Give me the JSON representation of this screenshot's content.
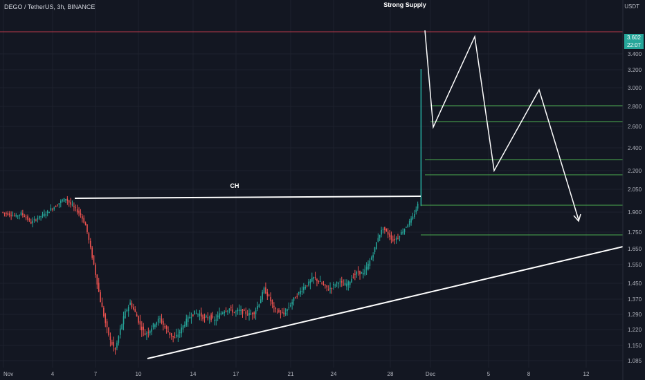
{
  "header": {
    "symbol_title": "DEGO / TetherUS, 3h, BINANCE",
    "currency": "USDT"
  },
  "last_price": {
    "value": "3.602",
    "countdown": "22:07"
  },
  "chart_data": {
    "type": "candlestick",
    "x_ticks": [
      "Nov",
      "4",
      "7",
      "10",
      "14",
      "17",
      "21",
      "24",
      "28",
      "Dec",
      "5",
      "8",
      "12"
    ],
    "y_ticks": [
      "3.400",
      "3.200",
      "3.000",
      "2.800",
      "2.600",
      "2.400",
      "2.200",
      "2.050",
      "1.900",
      "1.750",
      "1.650",
      "1.550",
      "1.450",
      "1.370",
      "1.290",
      "1.220",
      "1.150",
      "1.085"
    ],
    "annotations": [
      {
        "text": "Strong Supply"
      },
      {
        "text": "CH"
      }
    ],
    "price_path": [
      {
        "price": 1.9
      },
      {
        "price": 1.89
      },
      {
        "price": 1.88
      },
      {
        "price": 1.87
      },
      {
        "price": 1.89
      },
      {
        "price": 1.86
      },
      {
        "price": 1.82
      },
      {
        "price": 1.85
      },
      {
        "price": 1.87
      },
      {
        "price": 1.89
      },
      {
        "price": 1.92
      },
      {
        "price": 1.94
      },
      {
        "price": 1.97
      },
      {
        "price": 1.99
      },
      {
        "price": 1.95
      },
      {
        "price": 1.92
      },
      {
        "price": 1.88
      },
      {
        "price": 1.8
      },
      {
        "price": 1.65
      },
      {
        "price": 1.5
      },
      {
        "price": 1.36
      },
      {
        "price": 1.25
      },
      {
        "price": 1.17
      },
      {
        "price": 1.13
      },
      {
        "price": 1.22
      },
      {
        "price": 1.3
      },
      {
        "price": 1.35
      },
      {
        "price": 1.3
      },
      {
        "price": 1.24
      },
      {
        "price": 1.2
      },
      {
        "price": 1.22
      },
      {
        "price": 1.25
      },
      {
        "price": 1.27
      },
      {
        "price": 1.23
      },
      {
        "price": 1.2
      },
      {
        "price": 1.18
      },
      {
        "price": 1.21
      },
      {
        "price": 1.25
      },
      {
        "price": 1.28
      },
      {
        "price": 1.3
      },
      {
        "price": 1.29
      },
      {
        "price": 1.27
      },
      {
        "price": 1.28
      },
      {
        "price": 1.26
      },
      {
        "price": 1.29
      },
      {
        "price": 1.31
      },
      {
        "price": 1.32
      },
      {
        "price": 1.3
      },
      {
        "price": 1.31
      },
      {
        "price": 1.3
      },
      {
        "price": 1.29
      },
      {
        "price": 1.3
      },
      {
        "price": 1.35
      },
      {
        "price": 1.42
      },
      {
        "price": 1.38
      },
      {
        "price": 1.32
      },
      {
        "price": 1.3
      },
      {
        "price": 1.29
      },
      {
        "price": 1.33
      },
      {
        "price": 1.37
      },
      {
        "price": 1.4
      },
      {
        "price": 1.43
      },
      {
        "price": 1.45
      },
      {
        "price": 1.48
      },
      {
        "price": 1.46
      },
      {
        "price": 1.44
      },
      {
        "price": 1.42
      },
      {
        "price": 1.44
      },
      {
        "price": 1.46
      },
      {
        "price": 1.44
      },
      {
        "price": 1.45
      },
      {
        "price": 1.49
      },
      {
        "price": 1.51
      },
      {
        "price": 1.5
      },
      {
        "price": 1.55
      },
      {
        "price": 1.62
      },
      {
        "price": 1.72
      },
      {
        "price": 1.78
      },
      {
        "price": 1.74
      },
      {
        "price": 1.7
      },
      {
        "price": 1.72
      },
      {
        "price": 1.76
      },
      {
        "price": 1.81
      },
      {
        "price": 1.86
      },
      {
        "price": 1.95
      },
      {
        "price": 3.6
      }
    ]
  }
}
